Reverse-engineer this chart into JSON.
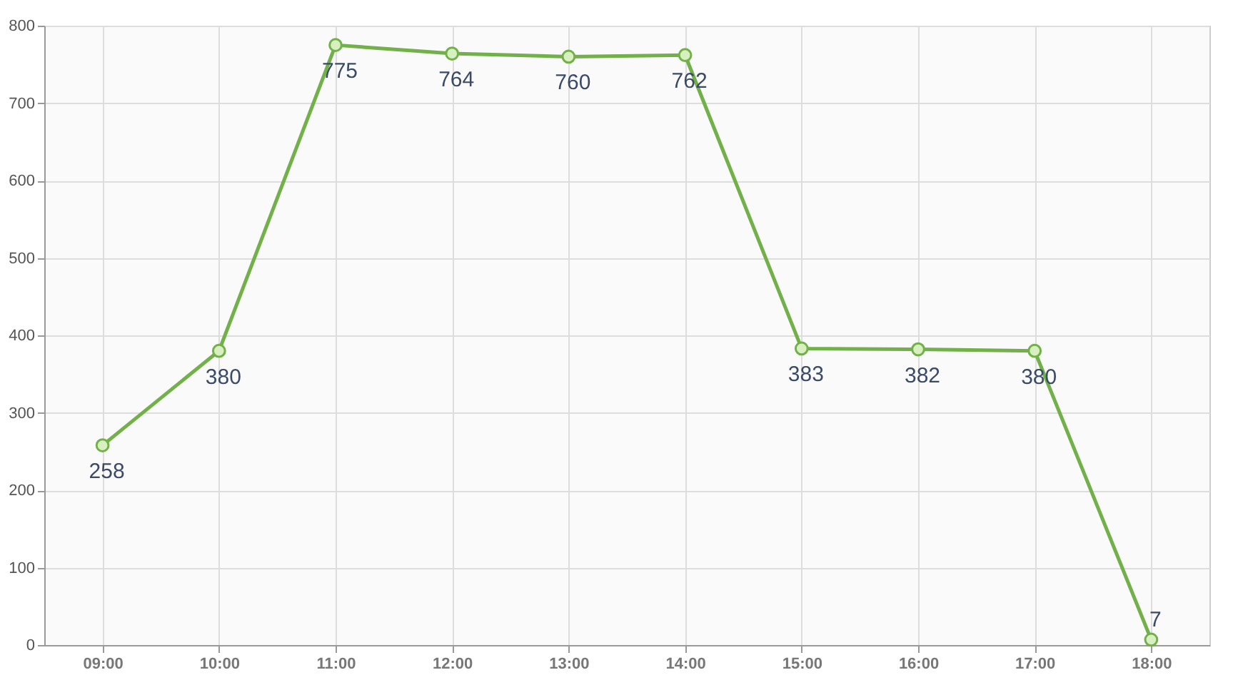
{
  "chart_data": {
    "type": "line",
    "categories": [
      "09:00",
      "10:00",
      "11:00",
      "12:00",
      "13:00",
      "14:00",
      "15:00",
      "16:00",
      "17:00",
      "18:00"
    ],
    "series": [
      {
        "color": "#72b04a",
        "values": [
          258,
          380,
          775,
          764,
          760,
          762,
          383,
          382,
          380,
          7
        ]
      }
    ],
    "ylim": [
      0,
      800
    ],
    "yticks": [
      0,
      100,
      200,
      300,
      400,
      500,
      600,
      700,
      800
    ],
    "grid": true,
    "data_labels": true,
    "marker": "circle",
    "line_style": "solid"
  }
}
